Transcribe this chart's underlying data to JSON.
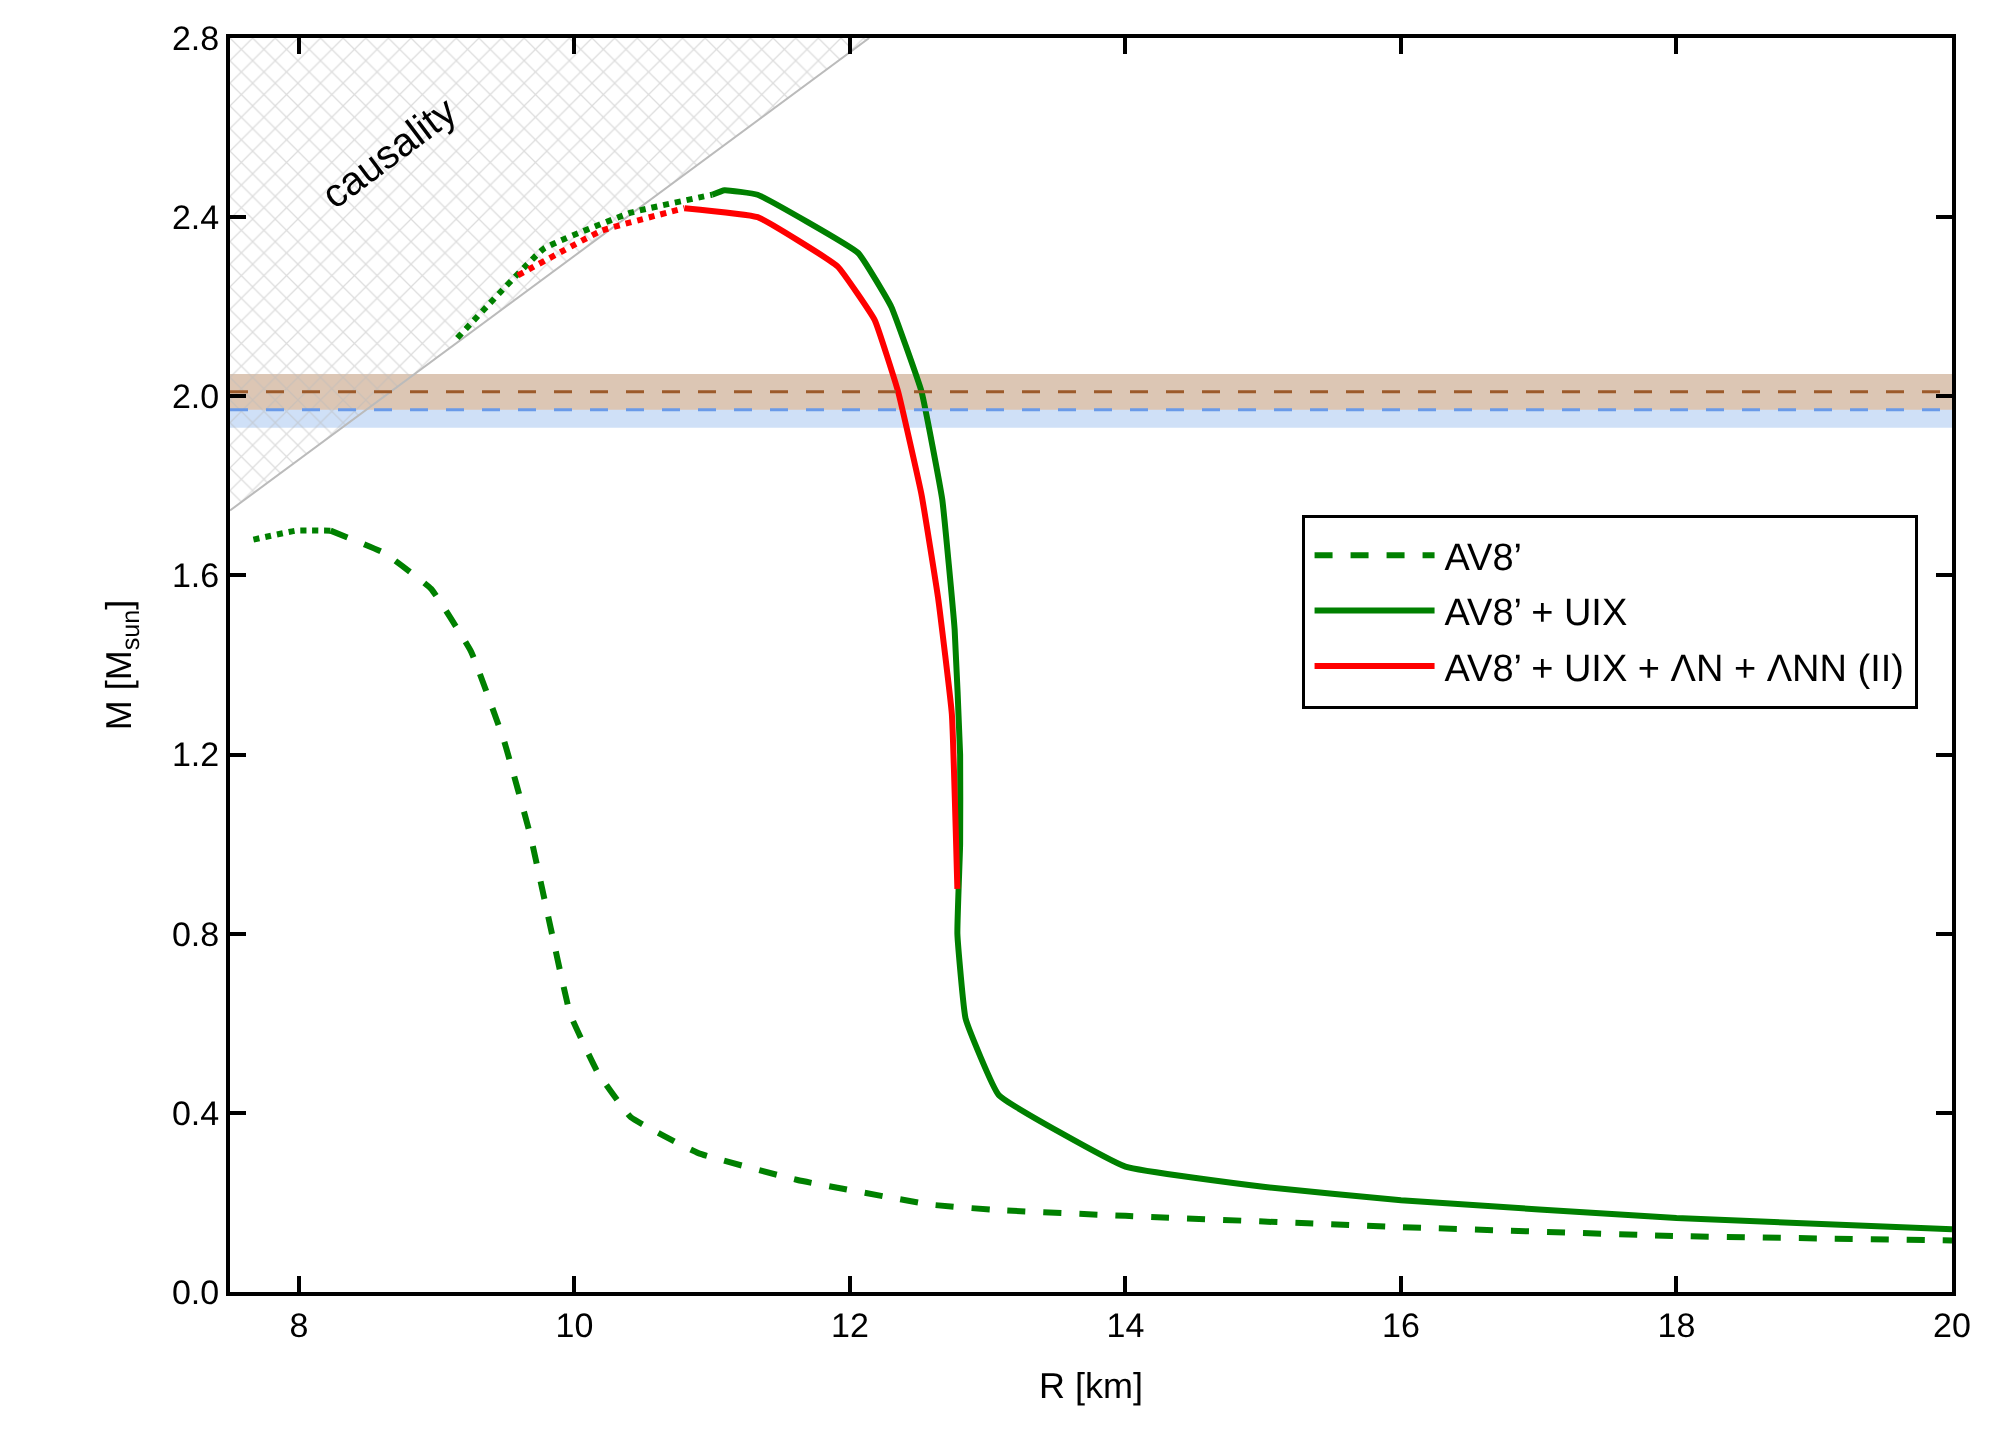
{
  "chart_data": {
    "type": "line",
    "xlabel": "R [km]",
    "ylabel": "M [M$_{sun}$]",
    "xlim": [
      7.5,
      20
    ],
    "xticks": [
      8,
      10,
      12,
      14,
      16,
      18,
      20
    ],
    "ylim": [
      0,
      2.8
    ],
    "yticks": [
      {
        "value": 0,
        "label": "0.0"
      },
      0.4,
      0.8,
      1.2,
      1.6,
      {
        "value": 2,
        "label": "2.0"
      },
      2.4,
      2.8
    ],
    "grid": false,
    "legend": "right",
    "marker": "none",
    "bands": [
      {
        "axis": "y",
        "from": 1.93,
        "to": 2.01,
        "color": "#cfe0f7"
      },
      {
        "axis": "y",
        "from": 1.97,
        "to": 2.05,
        "color": "#dcc6b4"
      }
    ],
    "ref_lines": [
      {
        "axis": "y",
        "value": 1.97,
        "color": "#6a9ae8",
        "line_style": "dashed"
      },
      {
        "axis": "y",
        "value": 2.01,
        "color": "#9c5a2a",
        "line_style": "dashed"
      }
    ],
    "series": [
      {
        "type": "area",
        "name": "causality",
        "color": "#bbbbbb",
        "x": [
          7.5,
          12.14
        ],
        "values": [
          1.745,
          2.8
        ]
      },
      {
        "color": "#008000",
        "line_style": "dotted",
        "x": [
          7.67,
          7.98,
          8.23
        ],
        "values": [
          1.68,
          1.7,
          1.7
        ]
      },
      {
        "name": "AV8’",
        "color": "#008000",
        "line_style": "dashed",
        "x": [
          8.23,
          8.62,
          8.96,
          9.25,
          9.49,
          9.68,
          9.83,
          9.97,
          10.17,
          10.41,
          10.9,
          11.62,
          12.59,
          13.07,
          14,
          16,
          18,
          20
        ],
        "values": [
          1.7,
          1.65,
          1.57,
          1.43,
          1.23,
          1.02,
          0.81,
          0.62,
          0.49,
          0.39,
          0.31,
          0.25,
          0.195,
          0.183,
          0.17,
          0.145,
          0.125,
          0.115
        ]
      },
      {
        "color": "#008000",
        "line_style": "dotted",
        "x": [
          9.15,
          9.78,
          10.41,
          11.0
        ],
        "values": [
          2.13,
          2.33,
          2.41,
          2.45
        ]
      },
      {
        "name": "AV8’ + UIX",
        "color": "#008000",
        "line_style": "solid",
        "x": [
          11.0,
          11.09,
          11.33,
          12.06,
          12.3,
          12.52,
          12.67,
          12.76,
          12.8,
          12.8,
          12.78,
          12.84,
          13.08,
          14,
          15,
          16,
          18,
          20
        ],
        "values": [
          2.45,
          2.46,
          2.45,
          2.32,
          2.2,
          2.01,
          1.77,
          1.48,
          1.2,
          1.0,
          0.8,
          0.61,
          0.44,
          0.28,
          0.235,
          0.205,
          0.165,
          0.14
        ]
      },
      {
        "color": "#ff0000",
        "line_style": "dotted",
        "x": [
          9.59,
          10.2,
          10.8
        ],
        "values": [
          2.27,
          2.37,
          2.42
        ]
      },
      {
        "name": "AV8’ + UIX + ΛN + ΛNN (II)",
        "color": "#ff0000",
        "line_style": "solid",
        "x": [
          10.8,
          11.33,
          11.91,
          12.18,
          12.35,
          12.52,
          12.64,
          12.74,
          12.78
        ],
        "values": [
          2.42,
          2.4,
          2.29,
          2.17,
          2.01,
          1.78,
          1.55,
          1.29,
          0.9
        ]
      }
    ]
  }
}
